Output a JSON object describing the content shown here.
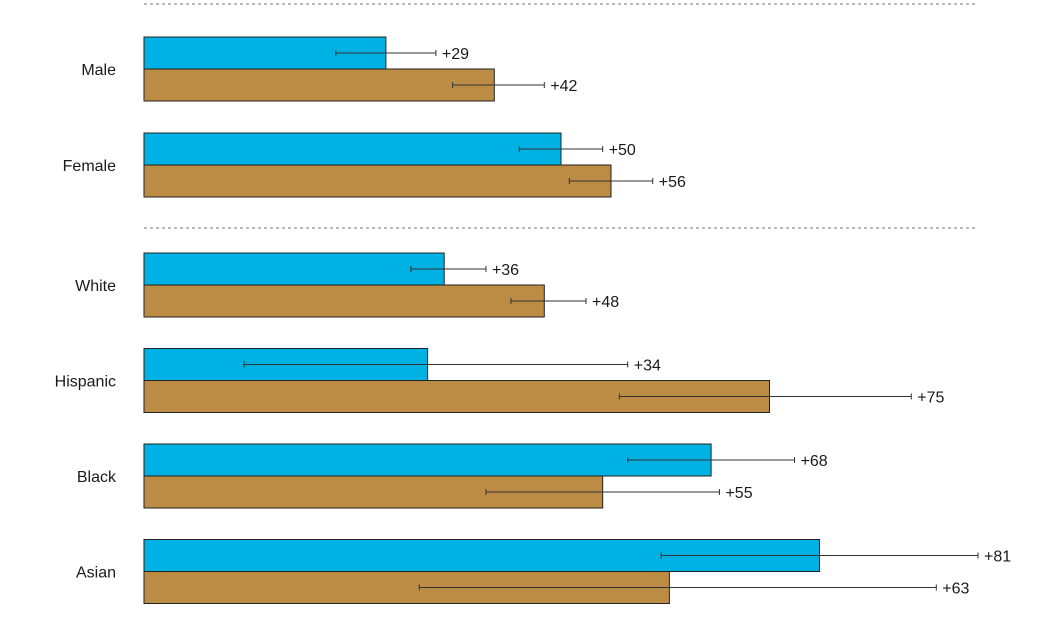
{
  "chart_data": {
    "type": "bar",
    "orientation": "horizontal",
    "grid": false,
    "legend": "none",
    "colors": {
      "series_a": "#00b2e3",
      "series_b": "#bc8c45"
    },
    "groups": [
      {
        "categories": [
          "Male",
          "Female"
        ]
      },
      {
        "categories": [
          "White",
          "Hispanic",
          "Black",
          "Asian"
        ]
      }
    ],
    "categories": [
      "Male",
      "Female",
      "White",
      "Hispanic",
      "Black",
      "Asian"
    ],
    "series": [
      {
        "name": "series_a",
        "values": [
          29,
          50,
          36,
          34,
          68,
          81
        ],
        "labels": [
          "+29",
          "+50",
          "+36",
          "+34",
          "+68",
          "+81"
        ],
        "error_low": [
          23,
          45,
          32,
          12,
          58,
          62
        ],
        "error_high": [
          35,
          55,
          41,
          58,
          78,
          100
        ]
      },
      {
        "name": "series_b",
        "values": [
          42,
          56,
          48,
          75,
          55,
          63
        ],
        "labels": [
          "+42",
          "+56",
          "+48",
          "+75",
          "+55",
          "+63"
        ],
        "error_low": [
          37,
          51,
          44,
          57,
          41,
          33
        ],
        "error_high": [
          48,
          61,
          53,
          92,
          69,
          95
        ]
      }
    ],
    "xlim": [
      0,
      100
    ]
  }
}
